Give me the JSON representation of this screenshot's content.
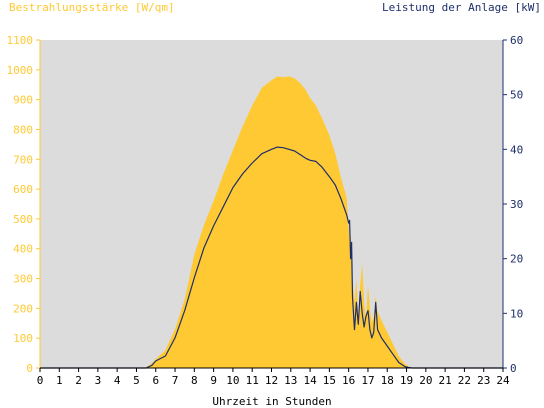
{
  "colors": {
    "background": "#ffffff",
    "plot_background": "#dcdcdc",
    "irradiance": "#ffc933",
    "power": "#1f2f6a",
    "left_axis_text": "#ffc933",
    "right_axis_text": "#1f2f6a",
    "bottom_axis_text": "#000000"
  },
  "chart_data": {
    "type": "area",
    "title_left": "Bestrahlungsstärke [W/qm]",
    "title_right": "Leistung der Anlage [kW]",
    "xlabel": "Uhrzeit in Stunden",
    "xlim": [
      0,
      24
    ],
    "xticks": [
      "0",
      "1",
      "2",
      "3",
      "4",
      "5",
      "6",
      "7",
      "8",
      "9",
      "10",
      "11",
      "12",
      "13",
      "14",
      "15",
      "16",
      "17",
      "18",
      "19",
      "20",
      "21",
      "22",
      "23",
      "24"
    ],
    "ylim_left": [
      0,
      1100
    ],
    "yticks_left": [
      "0",
      "100",
      "200",
      "300",
      "400",
      "500",
      "600",
      "700",
      "800",
      "900",
      "1000",
      "1100"
    ],
    "ylim_right": [
      0,
      60
    ],
    "yticks_right": [
      "0",
      "10",
      "20",
      "30",
      "40",
      "50",
      "60"
    ],
    "grid": false,
    "series": [
      {
        "axis": "left",
        "style": "area",
        "x": [
          0,
          5.4,
          5.7,
          6.0,
          6.5,
          7.0,
          7.5,
          8.0,
          8.5,
          9.0,
          9.5,
          10.0,
          10.5,
          11.0,
          11.5,
          12.0,
          12.3,
          12.6,
          12.9,
          13.2,
          13.5,
          13.8,
          14.0,
          14.3,
          14.6,
          15.0,
          15.3,
          15.6,
          15.9,
          16.0,
          16.05,
          16.1,
          16.2,
          16.3,
          16.4,
          16.5,
          16.6,
          16.7,
          16.8,
          16.9,
          17.0,
          17.1,
          17.2,
          17.3,
          17.4,
          17.5,
          17.7,
          18.0,
          18.3,
          18.6,
          18.9,
          19.1,
          19.3,
          24
        ],
        "y": [
          0,
          0,
          10,
          30,
          60,
          130,
          230,
          380,
          480,
          560,
          650,
          730,
          810,
          880,
          940,
          965,
          978,
          975,
          978,
          972,
          955,
          930,
          905,
          880,
          840,
          780,
          720,
          640,
          570,
          470,
          420,
          450,
          300,
          220,
          300,
          170,
          280,
          350,
          220,
          160,
          280,
          200,
          150,
          170,
          240,
          190,
          160,
          120,
          80,
          40,
          15,
          5,
          0,
          0
        ]
      },
      {
        "axis": "right",
        "style": "line",
        "x": [
          0,
          5.5,
          5.8,
          6.0,
          6.5,
          7.0,
          7.5,
          8.0,
          8.5,
          9.0,
          9.5,
          10.0,
          10.5,
          11.0,
          11.5,
          12.0,
          12.3,
          12.6,
          12.9,
          13.2,
          13.5,
          13.8,
          14.0,
          14.3,
          14.6,
          15.0,
          15.3,
          15.6,
          15.9,
          16.0,
          16.05,
          16.1,
          16.15,
          16.2,
          16.3,
          16.4,
          16.5,
          16.6,
          16.7,
          16.8,
          16.9,
          17.0,
          17.1,
          17.2,
          17.3,
          17.4,
          17.5,
          17.7,
          18.0,
          18.3,
          18.6,
          18.9,
          19.1,
          19.3,
          24
        ],
        "y": [
          0,
          0,
          0.5,
          1.3,
          2.2,
          5.5,
          10.5,
          16.5,
          22,
          26,
          29.5,
          33,
          35.5,
          37.5,
          39.2,
          40,
          40.4,
          40.3,
          40,
          39.7,
          39,
          38.3,
          38,
          37.8,
          36.8,
          35,
          33.5,
          31,
          28,
          26.5,
          27,
          20,
          23,
          13,
          7,
          12,
          8,
          14,
          10,
          7.5,
          9.5,
          10.5,
          7,
          5.5,
          6.5,
          12,
          7,
          5.5,
          4,
          2.5,
          1,
          0.3,
          0.1,
          0,
          0
        ]
      }
    ]
  }
}
